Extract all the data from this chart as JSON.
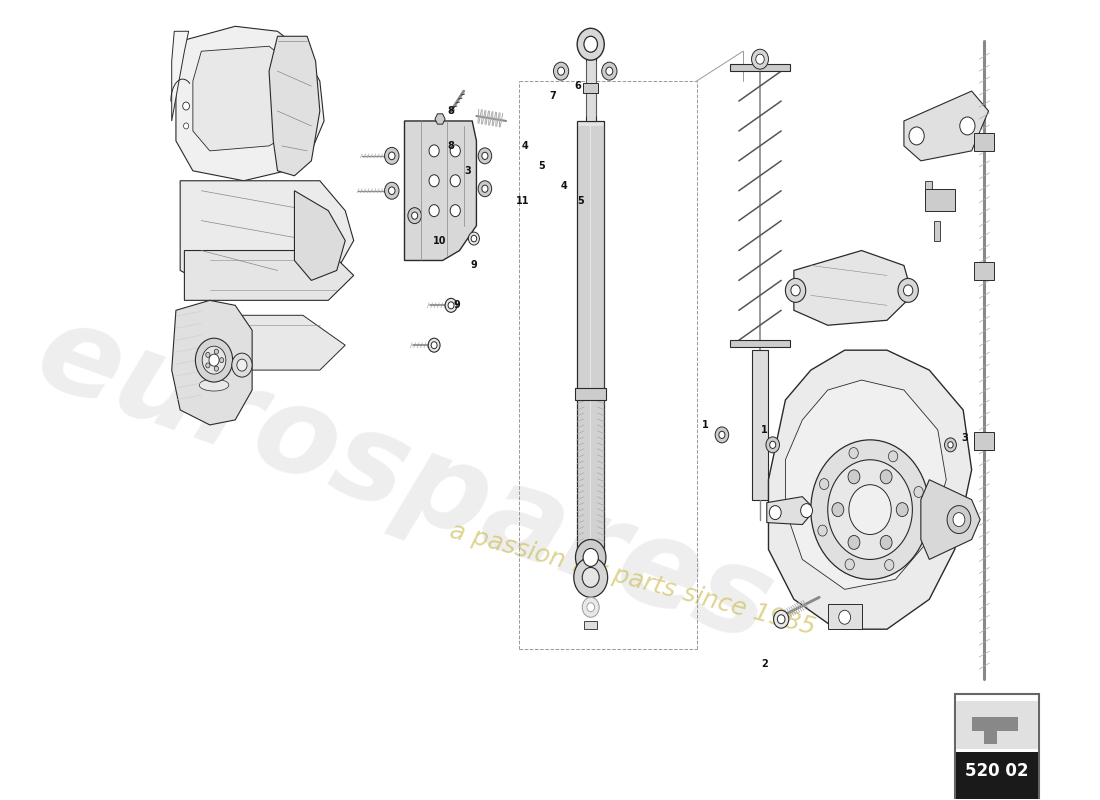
{
  "background_color": "#ffffff",
  "line_color": "#2a2a2a",
  "light_gray": "#cccccc",
  "mid_gray": "#aaaaaa",
  "dark_gray": "#888888",
  "very_light_gray": "#e8e8e8",
  "watermark1": "eurospares",
  "watermark2": "a passion for parts since 1985",
  "wm1_color": "#d0d0d0",
  "wm2_color": "#c8b84a",
  "page_code": "520 02",
  "badge_bg": "#1a1a1a",
  "badge_fg": "#ffffff"
}
